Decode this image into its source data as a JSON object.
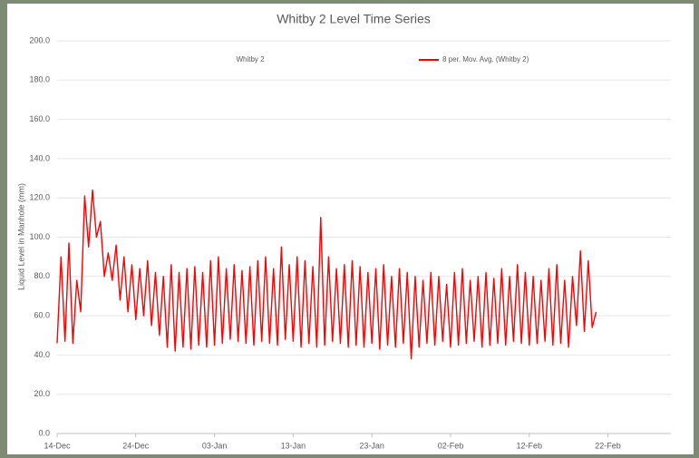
{
  "chart_data": {
    "type": "line",
    "title": "Whitby 2 Level Time Series",
    "y_label": "Liquid Level in Manhole (mm)",
    "annotations": [
      "Whitby 2"
    ],
    "legend": "top-right",
    "grid": true,
    "xlim": [
      0,
      78
    ],
    "ylim": [
      0,
      200
    ],
    "xticks": [
      {
        "value": 0,
        "label": "14-Dec"
      },
      {
        "value": 10,
        "label": "24-Dec"
      },
      {
        "value": 20,
        "label": "03-Jan"
      },
      {
        "value": 30,
        "label": "13-Jan"
      },
      {
        "value": 40,
        "label": "23-Jan"
      },
      {
        "value": 50,
        "label": "02-Feb"
      },
      {
        "value": 60,
        "label": "12-Feb"
      },
      {
        "value": 70,
        "label": "22-Feb"
      }
    ],
    "yticks": [
      {
        "value": 0,
        "label": "0.0"
      },
      {
        "value": 20,
        "label": "20.0"
      },
      {
        "value": 40,
        "label": "40.0"
      },
      {
        "value": 60,
        "label": "60.0"
      },
      {
        "value": 80,
        "label": "80.0"
      },
      {
        "value": 100,
        "label": "100.0"
      },
      {
        "value": 120,
        "label": "120.0"
      },
      {
        "value": 140,
        "label": "140.0"
      },
      {
        "value": 160,
        "label": "160.0"
      },
      {
        "value": 180,
        "label": "180.0"
      },
      {
        "value": 200,
        "label": "200.0"
      }
    ],
    "x": [
      0,
      0.5,
      1,
      1.5,
      2,
      2.5,
      3,
      3.5,
      4,
      4.5,
      5,
      5.5,
      6,
      6.5,
      7,
      7.5,
      8,
      8.5,
      9,
      9.5,
      10,
      10.5,
      11,
      11.5,
      12,
      12.5,
      13,
      13.5,
      14,
      14.5,
      15,
      15.5,
      16,
      16.5,
      17,
      17.5,
      18,
      18.5,
      19,
      19.5,
      20,
      20.5,
      21,
      21.5,
      22,
      22.5,
      23,
      23.5,
      24,
      24.5,
      25,
      25.5,
      26,
      26.5,
      27,
      27.5,
      28,
      28.5,
      29,
      29.5,
      30,
      30.5,
      31,
      31.5,
      32,
      32.5,
      33,
      33.5,
      34,
      34.5,
      35,
      35.5,
      36,
      36.5,
      37,
      37.5,
      38,
      38.5,
      39,
      39.5,
      40,
      40.5,
      41,
      41.5,
      42,
      42.5,
      43,
      43.5,
      44,
      44.5,
      45,
      45.5,
      46,
      46.5,
      47,
      47.5,
      48,
      48.5,
      49,
      49.5,
      50,
      50.5,
      51,
      51.5,
      52,
      52.5,
      53,
      53.5,
      54,
      54.5,
      55,
      55.5,
      56,
      56.5,
      57,
      57.5,
      58,
      58.5,
      59,
      59.5,
      60,
      60.5,
      61,
      61.5,
      62,
      62.5,
      63,
      63.5,
      64,
      64.5,
      65,
      65.5,
      66,
      66.5,
      67,
      67.5,
      68,
      68.5
    ],
    "series": [
      {
        "name": "8 per. Mov. Avg. (Whitby 2)",
        "color": "#ff0000",
        "values": [
          46,
          90,
          47,
          97,
          46,
          78,
          62,
          121,
          95,
          124,
          100,
          108,
          80,
          92,
          78,
          96,
          68,
          90,
          62,
          86,
          58,
          84,
          60,
          88,
          55,
          82,
          50,
          80,
          44,
          86,
          42,
          82,
          44,
          84,
          43,
          85,
          45,
          82,
          44,
          88,
          45,
          90,
          46,
          84,
          48,
          86,
          47,
          83,
          46,
          85,
          45,
          88,
          47,
          90,
          46,
          84,
          45,
          95,
          48,
          86,
          47,
          90,
          44,
          88,
          46,
          85,
          44,
          110,
          45,
          90,
          47,
          84,
          46,
          86,
          44,
          88,
          45,
          85,
          44,
          82,
          46,
          84,
          43,
          86,
          45,
          80,
          44,
          84,
          46,
          82,
          38,
          80,
          44,
          78,
          46,
          82,
          45,
          80,
          47,
          76,
          44,
          82,
          45,
          84,
          46,
          78,
          47,
          80,
          44,
          82,
          45,
          79,
          46,
          84,
          45,
          80,
          47,
          86,
          46,
          82,
          45,
          80,
          46,
          78,
          47,
          84,
          45,
          86,
          46,
          78,
          44,
          80,
          55,
          93,
          52,
          88,
          54,
          62
        ]
      }
    ]
  }
}
